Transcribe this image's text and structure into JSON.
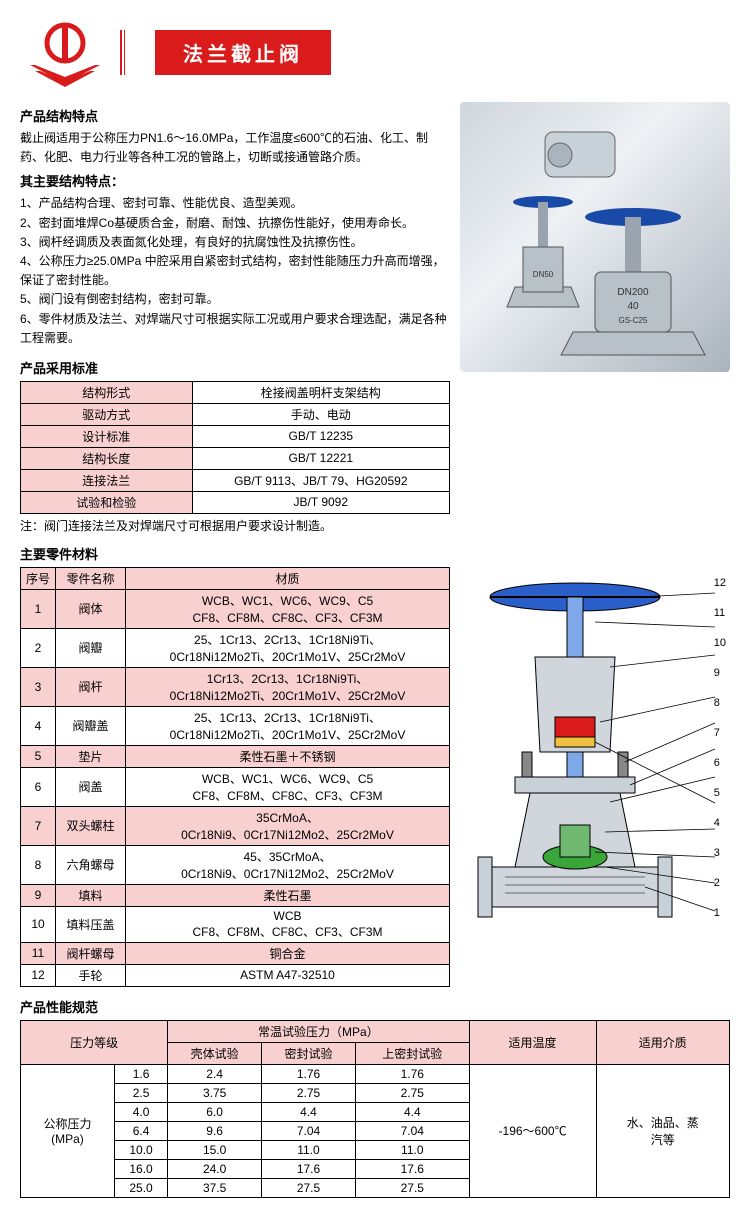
{
  "header": {
    "title": "法兰截止阀",
    "logo_color_primary": "#d91b1b",
    "title_bg": "#d91b1b",
    "title_color": "#ffffff"
  },
  "structure_features": {
    "heading": "产品结构特点",
    "intro": "截止阀适用于公称压力PN1.6～16.0MPa，工作温度≤600℃的石油、化工、制药、化肥、电力行业等各种工况的管路上，切断或接通管路介质。",
    "sub_heading": "其主要结构特点：",
    "items": [
      "1、产品结构合理、密封可靠、性能优良、造型美观。",
      "2、密封面堆焊Co基硬质合金，耐磨、耐蚀、抗擦伤性能好，使用寿命长。",
      "3、阀杆经调质及表面氮化处理，有良好的抗腐蚀性及抗擦伤性。",
      "4、公称压力≥25.0MPa 中腔采用自紧密封式结构，密封性能随压力升高而增强，保证了密封性能。",
      "5、阀门设有倒密封结构，密封可靠。",
      "6、零件材质及法兰、对焊端尺寸可根据实际工况或用户要求合理选配，满足各种工程需要。"
    ]
  },
  "standards": {
    "heading": "产品采用标准",
    "rows": [
      {
        "label": "结构形式",
        "value": "栓接阀盖明杆支架结构"
      },
      {
        "label": "驱动方式",
        "value": "手动、电动"
      },
      {
        "label": "设计标准",
        "value": "GB/T 12235"
      },
      {
        "label": "结构长度",
        "value": "GB/T 12221"
      },
      {
        "label": "连接法兰",
        "value": "GB/T 9113、JB/T 79、HG20592"
      },
      {
        "label": "试验和检验",
        "value": "JB/T 9092"
      }
    ],
    "note": "注：阀门连接法兰及对焊端尺寸可根据用户要求设计制造。",
    "label_bg": "#f8d0d0",
    "border_color": "#000000"
  },
  "parts": {
    "heading": "主要零件材料",
    "columns": [
      "序号",
      "零件名称",
      "材质"
    ],
    "rows": [
      {
        "no": "1",
        "name": "阀体",
        "material": "WCB、WC1、WC6、WC9、C5\nCF8、CF8M、CF8C、CF3、CF3M"
      },
      {
        "no": "2",
        "name": "阀瓣",
        "material": "25、1Cr13、2Cr13、1Cr18Ni9Ti、\n0Cr18Ni12Mo2Ti、20Cr1Mo1V、25Cr2MoV"
      },
      {
        "no": "3",
        "name": "阀杆",
        "material": "1Cr13、2Cr13、1Cr18Ni9Ti、\n0Cr18Ni12Mo2Ti、20Cr1Mo1V、25Cr2MoV"
      },
      {
        "no": "4",
        "name": "阀瓣盖",
        "material": "25、1Cr13、2Cr13、1Cr18Ni9Ti、\n0Cr18Ni12Mo2Ti、20Cr1Mo1V、25Cr2MoV"
      },
      {
        "no": "5",
        "name": "垫片",
        "material": "柔性石墨＋不锈钢"
      },
      {
        "no": "6",
        "name": "阀盖",
        "material": "WCB、WC1、WC6、WC9、C5\nCF8、CF8M、CF8C、CF3、CF3M"
      },
      {
        "no": "7",
        "name": "双头螺柱",
        "material": "35CrMoA、\n0Cr18Ni9、0Cr17Ni12Mo2、25Cr2MoV"
      },
      {
        "no": "8",
        "name": "六角螺母",
        "material": "45、35CrMoA、\n0Cr18Ni9、0Cr17Ni12Mo2、25Cr2MoV"
      },
      {
        "no": "9",
        "name": "填料",
        "material": "柔性石墨"
      },
      {
        "no": "10",
        "name": "填料压盖",
        "material": "WCB\nCF8、CF8M、CF8C、CF3、CF3M"
      },
      {
        "no": "11",
        "name": "阀杆螺母",
        "material": "铜合金"
      },
      {
        "no": "12",
        "name": "手轮",
        "material": "ASTM A47-32510"
      }
    ],
    "header_bg": "#f8d0d0",
    "odd_row_bg": "#f8d0d0",
    "even_row_bg": "#ffffff"
  },
  "performance": {
    "heading": "产品性能规范",
    "header1": "压力等级",
    "header2": "常温试验压力（MPa）",
    "sub_headers": [
      "壳体试验",
      "密封试验",
      "上密封试验"
    ],
    "header3": "适用温度",
    "header4": "适用介质",
    "row_label": "公称压力\n(MPa)",
    "rows": [
      {
        "pn": "1.6",
        "shell": "2.4",
        "seal": "1.76",
        "upseal": "1.76"
      },
      {
        "pn": "2.5",
        "shell": "3.75",
        "seal": "2.75",
        "upseal": "2.75"
      },
      {
        "pn": "4.0",
        "shell": "6.0",
        "seal": "4.4",
        "upseal": "4.4"
      },
      {
        "pn": "6.4",
        "shell": "9.6",
        "seal": "7.04",
        "upseal": "7.04"
      },
      {
        "pn": "10.0",
        "shell": "15.0",
        "seal": "11.0",
        "upseal": "11.0"
      },
      {
        "pn": "16.0",
        "shell": "24.0",
        "seal": "17.6",
        "upseal": "17.6"
      },
      {
        "pn": "25.0",
        "shell": "37.5",
        "seal": "27.5",
        "upseal": "27.5"
      }
    ],
    "temp": "-196～600℃",
    "medium": "水、油品、蒸\n汽等",
    "header_bg": "#f8d0d0"
  },
  "diagram": {
    "callouts": [
      "12",
      "11",
      "10",
      "9",
      "8",
      "7",
      "6",
      "5",
      "4",
      "3",
      "2",
      "1"
    ],
    "colors": {
      "handwheel": "#2a5fc9",
      "stem": "#7fa8e8",
      "bonnet": "#c8d0d8",
      "disc_seal": "#3aa63a",
      "packing": "#d91b1b",
      "gasket_yellow": "#f0c040",
      "body": "#d0d6dc",
      "outline": "#000000"
    }
  },
  "product_photo": {
    "valve1_label": "DN50",
    "valve2_label_top": "DN200",
    "valve2_label_mid": "40",
    "valve2_label_bottom": "GS-C25",
    "handwheel_color": "#1a4aa8",
    "body_color": "#b8c0c8"
  }
}
